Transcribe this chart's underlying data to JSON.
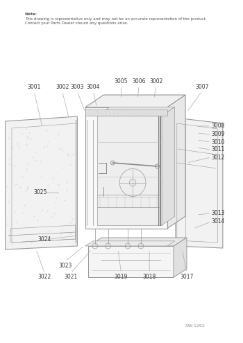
{
  "note_line1": "Note:",
  "note_line2": "This drawing is representative only and may not be an accurate representation of the product.",
  "note_line3": "Contact your Parts Dealer should any questions arise.",
  "diagram_id": "DW-1292",
  "bg_color": "#ffffff",
  "lc": "#999999",
  "lc2": "#bbbbbb",
  "tc": "#555555",
  "figsize": [
    3.5,
    4.95
  ],
  "dpi": 100
}
